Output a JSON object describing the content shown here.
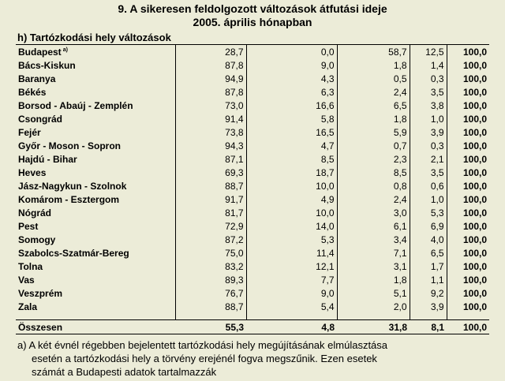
{
  "title_line1": "9. A sikeresen feldolgozott változások átfutási ideje",
  "title_line2": "2005. április  hónapban",
  "subtitle": "h) Tartózkodási hely változások",
  "rows": [
    {
      "name": "Budapest",
      "sup": "a)",
      "v1": "28,7",
      "v2": "0,0",
      "v3": "58,7",
      "v4": "12,5",
      "total": "100,0"
    },
    {
      "name": "Bács-Kiskun",
      "v1": "87,8",
      "v2": "9,0",
      "v3": "1,8",
      "v4": "1,4",
      "total": "100,0"
    },
    {
      "name": "Baranya",
      "v1": "94,9",
      "v2": "4,3",
      "v3": "0,5",
      "v4": "0,3",
      "total": "100,0"
    },
    {
      "name": "Békés",
      "v1": "87,8",
      "v2": "6,3",
      "v3": "2,4",
      "v4": "3,5",
      "total": "100,0"
    },
    {
      "name": "Borsod - Abaúj - Zemplén",
      "v1": "73,0",
      "v2": "16,6",
      "v3": "6,5",
      "v4": "3,8",
      "total": "100,0"
    },
    {
      "name": "Csongrád",
      "v1": "91,4",
      "v2": "5,8",
      "v3": "1,8",
      "v4": "1,0",
      "total": "100,0"
    },
    {
      "name": "Fejér",
      "v1": "73,8",
      "v2": "16,5",
      "v3": "5,9",
      "v4": "3,9",
      "total": "100,0"
    },
    {
      "name": "Győr - Moson - Sopron",
      "v1": "94,3",
      "v2": "4,7",
      "v3": "0,7",
      "v4": "0,3",
      "total": "100,0"
    },
    {
      "name": "Hajdú - Bihar",
      "v1": "87,1",
      "v2": "8,5",
      "v3": "2,3",
      "v4": "2,1",
      "total": "100,0"
    },
    {
      "name": "Heves",
      "v1": "69,3",
      "v2": "18,7",
      "v3": "8,5",
      "v4": "3,5",
      "total": "100,0"
    },
    {
      "name": "Jász-Nagykun - Szolnok",
      "v1": "88,7",
      "v2": "10,0",
      "v3": "0,8",
      "v4": "0,6",
      "total": "100,0"
    },
    {
      "name": "Komárom - Esztergom",
      "v1": "91,7",
      "v2": "4,9",
      "v3": "2,4",
      "v4": "1,0",
      "total": "100,0"
    },
    {
      "name": "Nógrád",
      "v1": "81,7",
      "v2": "10,0",
      "v3": "3,0",
      "v4": "5,3",
      "total": "100,0"
    },
    {
      "name": "Pest",
      "v1": "72,9",
      "v2": "14,0",
      "v3": "6,1",
      "v4": "6,9",
      "total": "100,0"
    },
    {
      "name": "Somogy",
      "v1": "87,2",
      "v2": "5,3",
      "v3": "3,4",
      "v4": "4,0",
      "total": "100,0"
    },
    {
      "name": "Szabolcs-Szatmár-Bereg",
      "v1": "75,0",
      "v2": "11,4",
      "v3": "7,1",
      "v4": "6,5",
      "total": "100,0"
    },
    {
      "name": "Tolna",
      "v1": "83,2",
      "v2": "12,1",
      "v3": "3,1",
      "v4": "1,7",
      "total": "100,0"
    },
    {
      "name": "Vas",
      "v1": "89,3",
      "v2": "7,7",
      "v3": "1,8",
      "v4": "1,1",
      "total": "100,0"
    },
    {
      "name": "Veszprém",
      "v1": "76,7",
      "v2": "9,0",
      "v3": "5,1",
      "v4": "9,2",
      "total": "100,0"
    },
    {
      "name": "Zala",
      "v1": "88,7",
      "v2": "5,4",
      "v3": "2,0",
      "v4": "3,9",
      "total": "100,0"
    }
  ],
  "total_row": {
    "name": "Összesen",
    "v1": "55,3",
    "v2": "4,8",
    "v3": "31,8",
    "v4": "8,1",
    "total": "100,0"
  },
  "footnote": {
    "line1": "a) A két évnél régebben bejelentett tartózkodási hely megújításának elmúlasztása",
    "line2": "esetén a tartózkodási hely a törvény erejénél fogva megszűnik. Ezen esetek",
    "line3": "számát a Budapesti adatok tartalmazzák"
  }
}
